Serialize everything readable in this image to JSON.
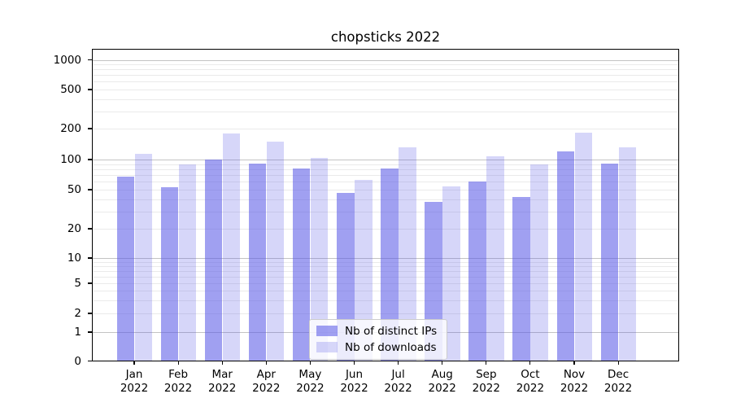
{
  "chart_data": {
    "type": "bar",
    "title": "chopsticks 2022",
    "categories": [
      "Jan 2022",
      "Feb 2022",
      "Mar 2022",
      "Apr 2022",
      "May 2022",
      "Jun 2022",
      "Jul 2022",
      "Aug 2022",
      "Sep 2022",
      "Oct 2022",
      "Nov 2022",
      "Dec 2022"
    ],
    "series": [
      {
        "name": "Nb of distinct IPs",
        "color": "rgba(85,85,230,0.56)",
        "values": [
          67,
          52,
          100,
          90,
          81,
          46,
          80,
          37,
          60,
          42,
          120,
          90
        ]
      },
      {
        "name": "Nb of downloads",
        "color": "rgba(85,85,230,0.24)",
        "values": [
          113,
          89,
          178,
          149,
          102,
          62,
          131,
          53,
          106,
          88,
          181,
          131
        ]
      }
    ],
    "xlabel": "",
    "ylabel": "",
    "y_axis": {
      "scale": "symlog",
      "ticks": [
        0,
        1,
        2,
        5,
        10,
        20,
        50,
        100,
        200,
        500,
        1000
      ],
      "major_gridlines": [
        1,
        10,
        100,
        1000
      ],
      "minor_gridlines": [
        2,
        3,
        4,
        5,
        6,
        7,
        8,
        9,
        20,
        30,
        40,
        50,
        60,
        70,
        80,
        90,
        200,
        300,
        400,
        500,
        600,
        700,
        800,
        900
      ],
      "ylim": [
        0,
        1275
      ]
    },
    "grid": "both",
    "legend_position": "lower center"
  }
}
